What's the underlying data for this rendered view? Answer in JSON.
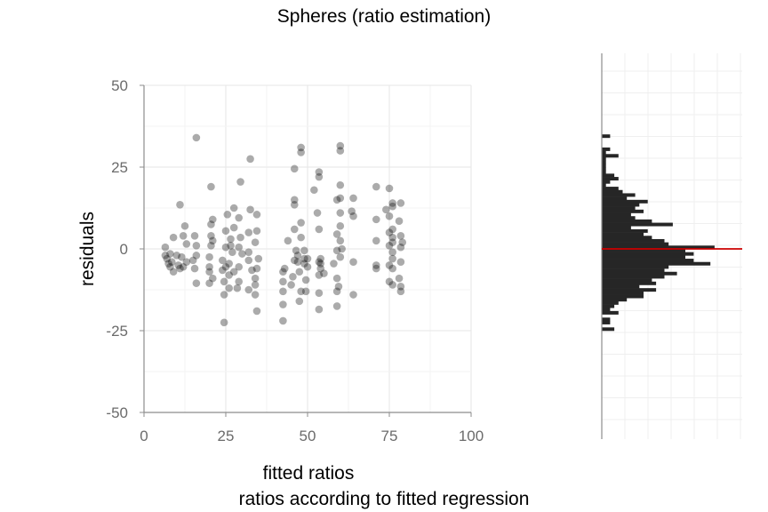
{
  "chart_data": {
    "type": "scatter",
    "title": "Spheres (ratio estimation)",
    "xlabel": "fitted ratios",
    "xsublabel": "ratios according to fitted regression",
    "ylabel": "residuals",
    "xlim": [
      0,
      100
    ],
    "ylim": [
      -50,
      50
    ],
    "xticks": [
      "0",
      "25",
      "50",
      "75",
      "100"
    ],
    "yticks": [
      "-50",
      "-25",
      "0",
      "25",
      "50"
    ],
    "grid": true,
    "legend": "none",
    "point_color": "#000000",
    "hist_color": "#262626",
    "zero_line_color": "#cc0000",
    "points": [
      [
        6.5,
        0.5
      ],
      [
        6.5,
        -2
      ],
      [
        7,
        -3
      ],
      [
        7.5,
        -4.5
      ],
      [
        8,
        -1.5
      ],
      [
        8,
        -5.5
      ],
      [
        8.5,
        -4
      ],
      [
        9,
        -7
      ],
      [
        9,
        3.5
      ],
      [
        10,
        -2
      ],
      [
        10.5,
        -5
      ],
      [
        11,
        -6
      ],
      [
        11,
        13.5
      ],
      [
        11.5,
        -2.5
      ],
      [
        12,
        4
      ],
      [
        12,
        -5.5
      ],
      [
        12.5,
        7
      ],
      [
        13,
        -4
      ],
      [
        13,
        1.5
      ],
      [
        15,
        -3.5
      ],
      [
        15.5,
        -6
      ],
      [
        15.5,
        4
      ],
      [
        16,
        -10.5
      ],
      [
        16,
        34
      ],
      [
        16,
        1
      ],
      [
        16,
        -2
      ],
      [
        20,
        -7
      ],
      [
        20,
        -5.5
      ],
      [
        20,
        -10.5
      ],
      [
        20,
        -2.5
      ],
      [
        20.5,
        1
      ],
      [
        20.5,
        7.5
      ],
      [
        20.5,
        4
      ],
      [
        20.5,
        19
      ],
      [
        21,
        2.5
      ],
      [
        21,
        9
      ],
      [
        21,
        -9
      ],
      [
        24,
        -3.5
      ],
      [
        24,
        -6.5
      ],
      [
        24.5,
        -10
      ],
      [
        24.5,
        -14
      ],
      [
        24.5,
        -22.5
      ],
      [
        25,
        0.5
      ],
      [
        25,
        5.5
      ],
      [
        25,
        -5.5
      ],
      [
        25.5,
        10.5
      ],
      [
        26,
        -4.5
      ],
      [
        26,
        -8
      ],
      [
        26,
        -12
      ],
      [
        26.5,
        1
      ],
      [
        26.5,
        3
      ],
      [
        27,
        -1
      ],
      [
        27.5,
        12.5
      ],
      [
        27.5,
        6.5
      ],
      [
        27.5,
        -7
      ],
      [
        28.5,
        -12
      ],
      [
        29,
        -5.5
      ],
      [
        29,
        0.5
      ],
      [
        29,
        9.5
      ],
      [
        29,
        -10
      ],
      [
        29.5,
        20.5
      ],
      [
        29.5,
        3.5
      ],
      [
        30,
        -1.5
      ],
      [
        32,
        -12.5
      ],
      [
        32,
        -3.5
      ],
      [
        32,
        -1
      ],
      [
        32,
        5
      ],
      [
        32.5,
        27.5
      ],
      [
        32.5,
        12
      ],
      [
        33,
        -6.5
      ],
      [
        34,
        2
      ],
      [
        34,
        -9
      ],
      [
        34,
        -11
      ],
      [
        34,
        -14
      ],
      [
        34.5,
        5.5
      ],
      [
        34.5,
        -19
      ],
      [
        34.5,
        10.5
      ],
      [
        34.5,
        -6
      ],
      [
        35,
        -3
      ],
      [
        42.5,
        -7
      ],
      [
        42.5,
        -10
      ],
      [
        42.5,
        -13
      ],
      [
        42.5,
        -17
      ],
      [
        42.5,
        -22
      ],
      [
        43,
        -6
      ],
      [
        44,
        2.5
      ],
      [
        45,
        -11
      ],
      [
        45.5,
        -8.5
      ],
      [
        46,
        -3.5
      ],
      [
        46,
        6
      ],
      [
        46,
        13.5
      ],
      [
        46,
        15
      ],
      [
        46,
        24.5
      ],
      [
        46.5,
        -0.5
      ],
      [
        47,
        -2
      ],
      [
        47,
        -4
      ],
      [
        47.5,
        -7
      ],
      [
        47.5,
        -16
      ],
      [
        48,
        8
      ],
      [
        48,
        3.5
      ],
      [
        48,
        29.5
      ],
      [
        48,
        31
      ],
      [
        48,
        -13
      ],
      [
        49,
        -3
      ],
      [
        49,
        -4.5
      ],
      [
        49,
        -0.5
      ],
      [
        49.5,
        -9.5
      ],
      [
        49.5,
        -13
      ],
      [
        50,
        -5.5
      ],
      [
        50,
        -3
      ],
      [
        52,
        18
      ],
      [
        53,
        11
      ],
      [
        53.5,
        -4
      ],
      [
        53.5,
        -8
      ],
      [
        53.5,
        -13.5
      ],
      [
        53.5,
        -18.5
      ],
      [
        53.5,
        6
      ],
      [
        53.5,
        23.5
      ],
      [
        53.5,
        22
      ],
      [
        54,
        -3
      ],
      [
        54,
        -4.5
      ],
      [
        54,
        -6
      ],
      [
        55,
        -7.5
      ],
      [
        58,
        -4.5
      ],
      [
        59,
        4.5
      ],
      [
        59,
        15
      ],
      [
        59,
        -0.5
      ],
      [
        59,
        -9
      ],
      [
        59,
        -13
      ],
      [
        59,
        -17.5
      ],
      [
        59.5,
        -11.5
      ],
      [
        60,
        2.5
      ],
      [
        60,
        7
      ],
      [
        60,
        11
      ],
      [
        60,
        19.5
      ],
      [
        60,
        30
      ],
      [
        60,
        31.5
      ],
      [
        60,
        15.5
      ],
      [
        60,
        -2.5
      ],
      [
        60.5,
        0
      ],
      [
        63.5,
        11.5
      ],
      [
        64,
        10
      ],
      [
        64,
        -4
      ],
      [
        64,
        -14
      ],
      [
        64,
        15.5
      ],
      [
        71,
        19
      ],
      [
        71,
        9
      ],
      [
        71,
        2.5
      ],
      [
        71,
        -5
      ],
      [
        71,
        -6
      ],
      [
        74,
        12
      ],
      [
        75,
        10
      ],
      [
        75,
        5
      ],
      [
        75,
        -5
      ],
      [
        75,
        -10
      ],
      [
        75,
        18.5
      ],
      [
        75,
        1
      ],
      [
        76,
        6
      ],
      [
        76,
        -11
      ],
      [
        76,
        3.5
      ],
      [
        76,
        -6
      ],
      [
        76,
        14
      ],
      [
        76,
        13
      ],
      [
        76,
        -3
      ],
      [
        76,
        -1
      ],
      [
        76,
        2
      ],
      [
        78,
        -9
      ],
      [
        78,
        8.5
      ],
      [
        78.5,
        4
      ],
      [
        78.5,
        0.5
      ],
      [
        78.5,
        14
      ],
      [
        78.5,
        -4
      ],
      [
        78.5,
        -11.5
      ],
      [
        78.5,
        -13
      ],
      [
        79,
        2
      ]
    ],
    "residual_histogram": [
      {
        "y": 34.5,
        "count": 2
      },
      {
        "y": 33.5,
        "count": 0
      },
      {
        "y": 32.5,
        "count": 0
      },
      {
        "y": 31.5,
        "count": 0
      },
      {
        "y": 30.5,
        "count": 2
      },
      {
        "y": 29.5,
        "count": 1
      },
      {
        "y": 28.5,
        "count": 4
      },
      {
        "y": 27.5,
        "count": 1
      },
      {
        "y": 26.5,
        "count": 1
      },
      {
        "y": 25.5,
        "count": 1
      },
      {
        "y": 24.5,
        "count": 1
      },
      {
        "y": 23.5,
        "count": 1
      },
      {
        "y": 22.5,
        "count": 3
      },
      {
        "y": 21.5,
        "count": 4
      },
      {
        "y": 20.5,
        "count": 2
      },
      {
        "y": 19.5,
        "count": 1
      },
      {
        "y": 18.5,
        "count": 4
      },
      {
        "y": 17.5,
        "count": 5
      },
      {
        "y": 16.5,
        "count": 8
      },
      {
        "y": 15.5,
        "count": 6
      },
      {
        "y": 14.5,
        "count": 11
      },
      {
        "y": 13.5,
        "count": 9
      },
      {
        "y": 12.5,
        "count": 8
      },
      {
        "y": 11.5,
        "count": 10
      },
      {
        "y": 10.5,
        "count": 7
      },
      {
        "y": 9.5,
        "count": 8
      },
      {
        "y": 8.5,
        "count": 12
      },
      {
        "y": 7.5,
        "count": 17
      },
      {
        "y": 6.5,
        "count": 7
      },
      {
        "y": 5.5,
        "count": 11
      },
      {
        "y": 4.5,
        "count": 10
      },
      {
        "y": 3.5,
        "count": 12
      },
      {
        "y": 2.5,
        "count": 15
      },
      {
        "y": 1.5,
        "count": 16
      },
      {
        "y": 0.5,
        "count": 27
      },
      {
        "y": -0.5,
        "count": 20
      },
      {
        "y": -1.5,
        "count": 22
      },
      {
        "y": -2.5,
        "count": 20
      },
      {
        "y": -3.5,
        "count": 22
      },
      {
        "y": -4.5,
        "count": 26
      },
      {
        "y": -5.5,
        "count": 16
      },
      {
        "y": -6.5,
        "count": 15
      },
      {
        "y": -7.5,
        "count": 18
      },
      {
        "y": -8.5,
        "count": 15
      },
      {
        "y": -9.5,
        "count": 12
      },
      {
        "y": -10.5,
        "count": 13
      },
      {
        "y": -11.5,
        "count": 9
      },
      {
        "y": -12.5,
        "count": 13
      },
      {
        "y": -13.5,
        "count": 10
      },
      {
        "y": -14.5,
        "count": 10
      },
      {
        "y": -15.5,
        "count": 6
      },
      {
        "y": -16.5,
        "count": 4
      },
      {
        "y": -17.5,
        "count": 3
      },
      {
        "y": -18.5,
        "count": 2
      },
      {
        "y": -19.5,
        "count": 4
      },
      {
        "y": -20.5,
        "count": 0
      },
      {
        "y": -21.5,
        "count": 2
      },
      {
        "y": -22.5,
        "count": 2
      },
      {
        "y": -23.5,
        "count": 0
      },
      {
        "y": -24.5,
        "count": 3
      }
    ]
  }
}
